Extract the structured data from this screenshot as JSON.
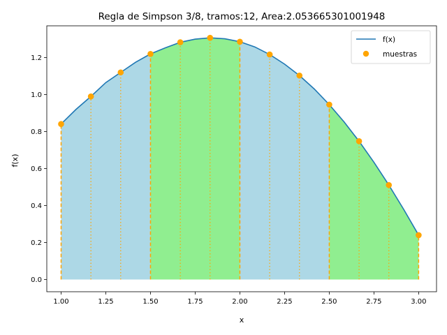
{
  "chart_data": {
    "type": "line",
    "title": "Regla de Simpson 3/8, tramos:12, Area:2.053665301001948",
    "xlabel": "x",
    "ylabel": "f(x)",
    "xlim": [
      0.92,
      3.1
    ],
    "ylim": [
      -0.066,
      1.372
    ],
    "xticks": [
      1.0,
      1.25,
      1.5,
      1.75,
      2.0,
      2.25,
      2.5,
      2.75,
      3.0
    ],
    "xtick_labels": [
      "1.00",
      "1.25",
      "1.50",
      "1.75",
      "2.00",
      "2.25",
      "2.50",
      "2.75",
      "3.00"
    ],
    "yticks": [
      0.0,
      0.2,
      0.4,
      0.6,
      0.8,
      1.0,
      1.2
    ],
    "ytick_labels": [
      "0.0",
      "0.2",
      "0.4",
      "0.6",
      "0.8",
      "1.0",
      "1.2"
    ],
    "grid": false,
    "legend_position": "top-right",
    "colors": {
      "line": "#1f77b4",
      "markers": "#ffa500",
      "segment_fill_a": "#add8e6",
      "segment_fill_b": "#90ee90",
      "dividers": "#ffa500"
    },
    "series": [
      {
        "name": "f(x)",
        "kind": "line",
        "x": [
          1.0,
          1.0833,
          1.1667,
          1.25,
          1.3333,
          1.4167,
          1.5,
          1.5833,
          1.6667,
          1.75,
          1.8333,
          1.9167,
          2.0,
          2.0833,
          2.1667,
          2.25,
          2.3333,
          2.4167,
          2.5,
          2.5833,
          2.6667,
          2.75,
          2.8333,
          2.9167,
          3.0
        ],
        "y": [
          0.841,
          0.92,
          0.99,
          1.065,
          1.12,
          1.175,
          1.22,
          1.253,
          1.283,
          1.3,
          1.307,
          1.302,
          1.286,
          1.258,
          1.217,
          1.165,
          1.103,
          1.03,
          0.946,
          0.852,
          0.748,
          0.634,
          0.511,
          0.379,
          0.24
        ]
      },
      {
        "name": "muestras",
        "kind": "markers",
        "x": [
          1.0,
          1.1667,
          1.3333,
          1.5,
          1.6667,
          1.8333,
          2.0,
          2.1667,
          2.3333,
          2.5,
          2.6667,
          2.8333,
          3.0
        ],
        "y": [
          0.841,
          0.99,
          1.12,
          1.22,
          1.283,
          1.307,
          1.286,
          1.217,
          1.103,
          0.946,
          0.748,
          0.511,
          0.24
        ]
      }
    ],
    "segments": [
      {
        "from": 1.0,
        "to": 1.5,
        "fill": "segment_fill_a"
      },
      {
        "from": 1.5,
        "to": 2.0,
        "fill": "segment_fill_b"
      },
      {
        "from": 2.0,
        "to": 2.5,
        "fill": "segment_fill_a"
      },
      {
        "from": 2.5,
        "to": 3.0,
        "fill": "segment_fill_b"
      }
    ],
    "legend": [
      "f(x)",
      "muestras"
    ]
  }
}
